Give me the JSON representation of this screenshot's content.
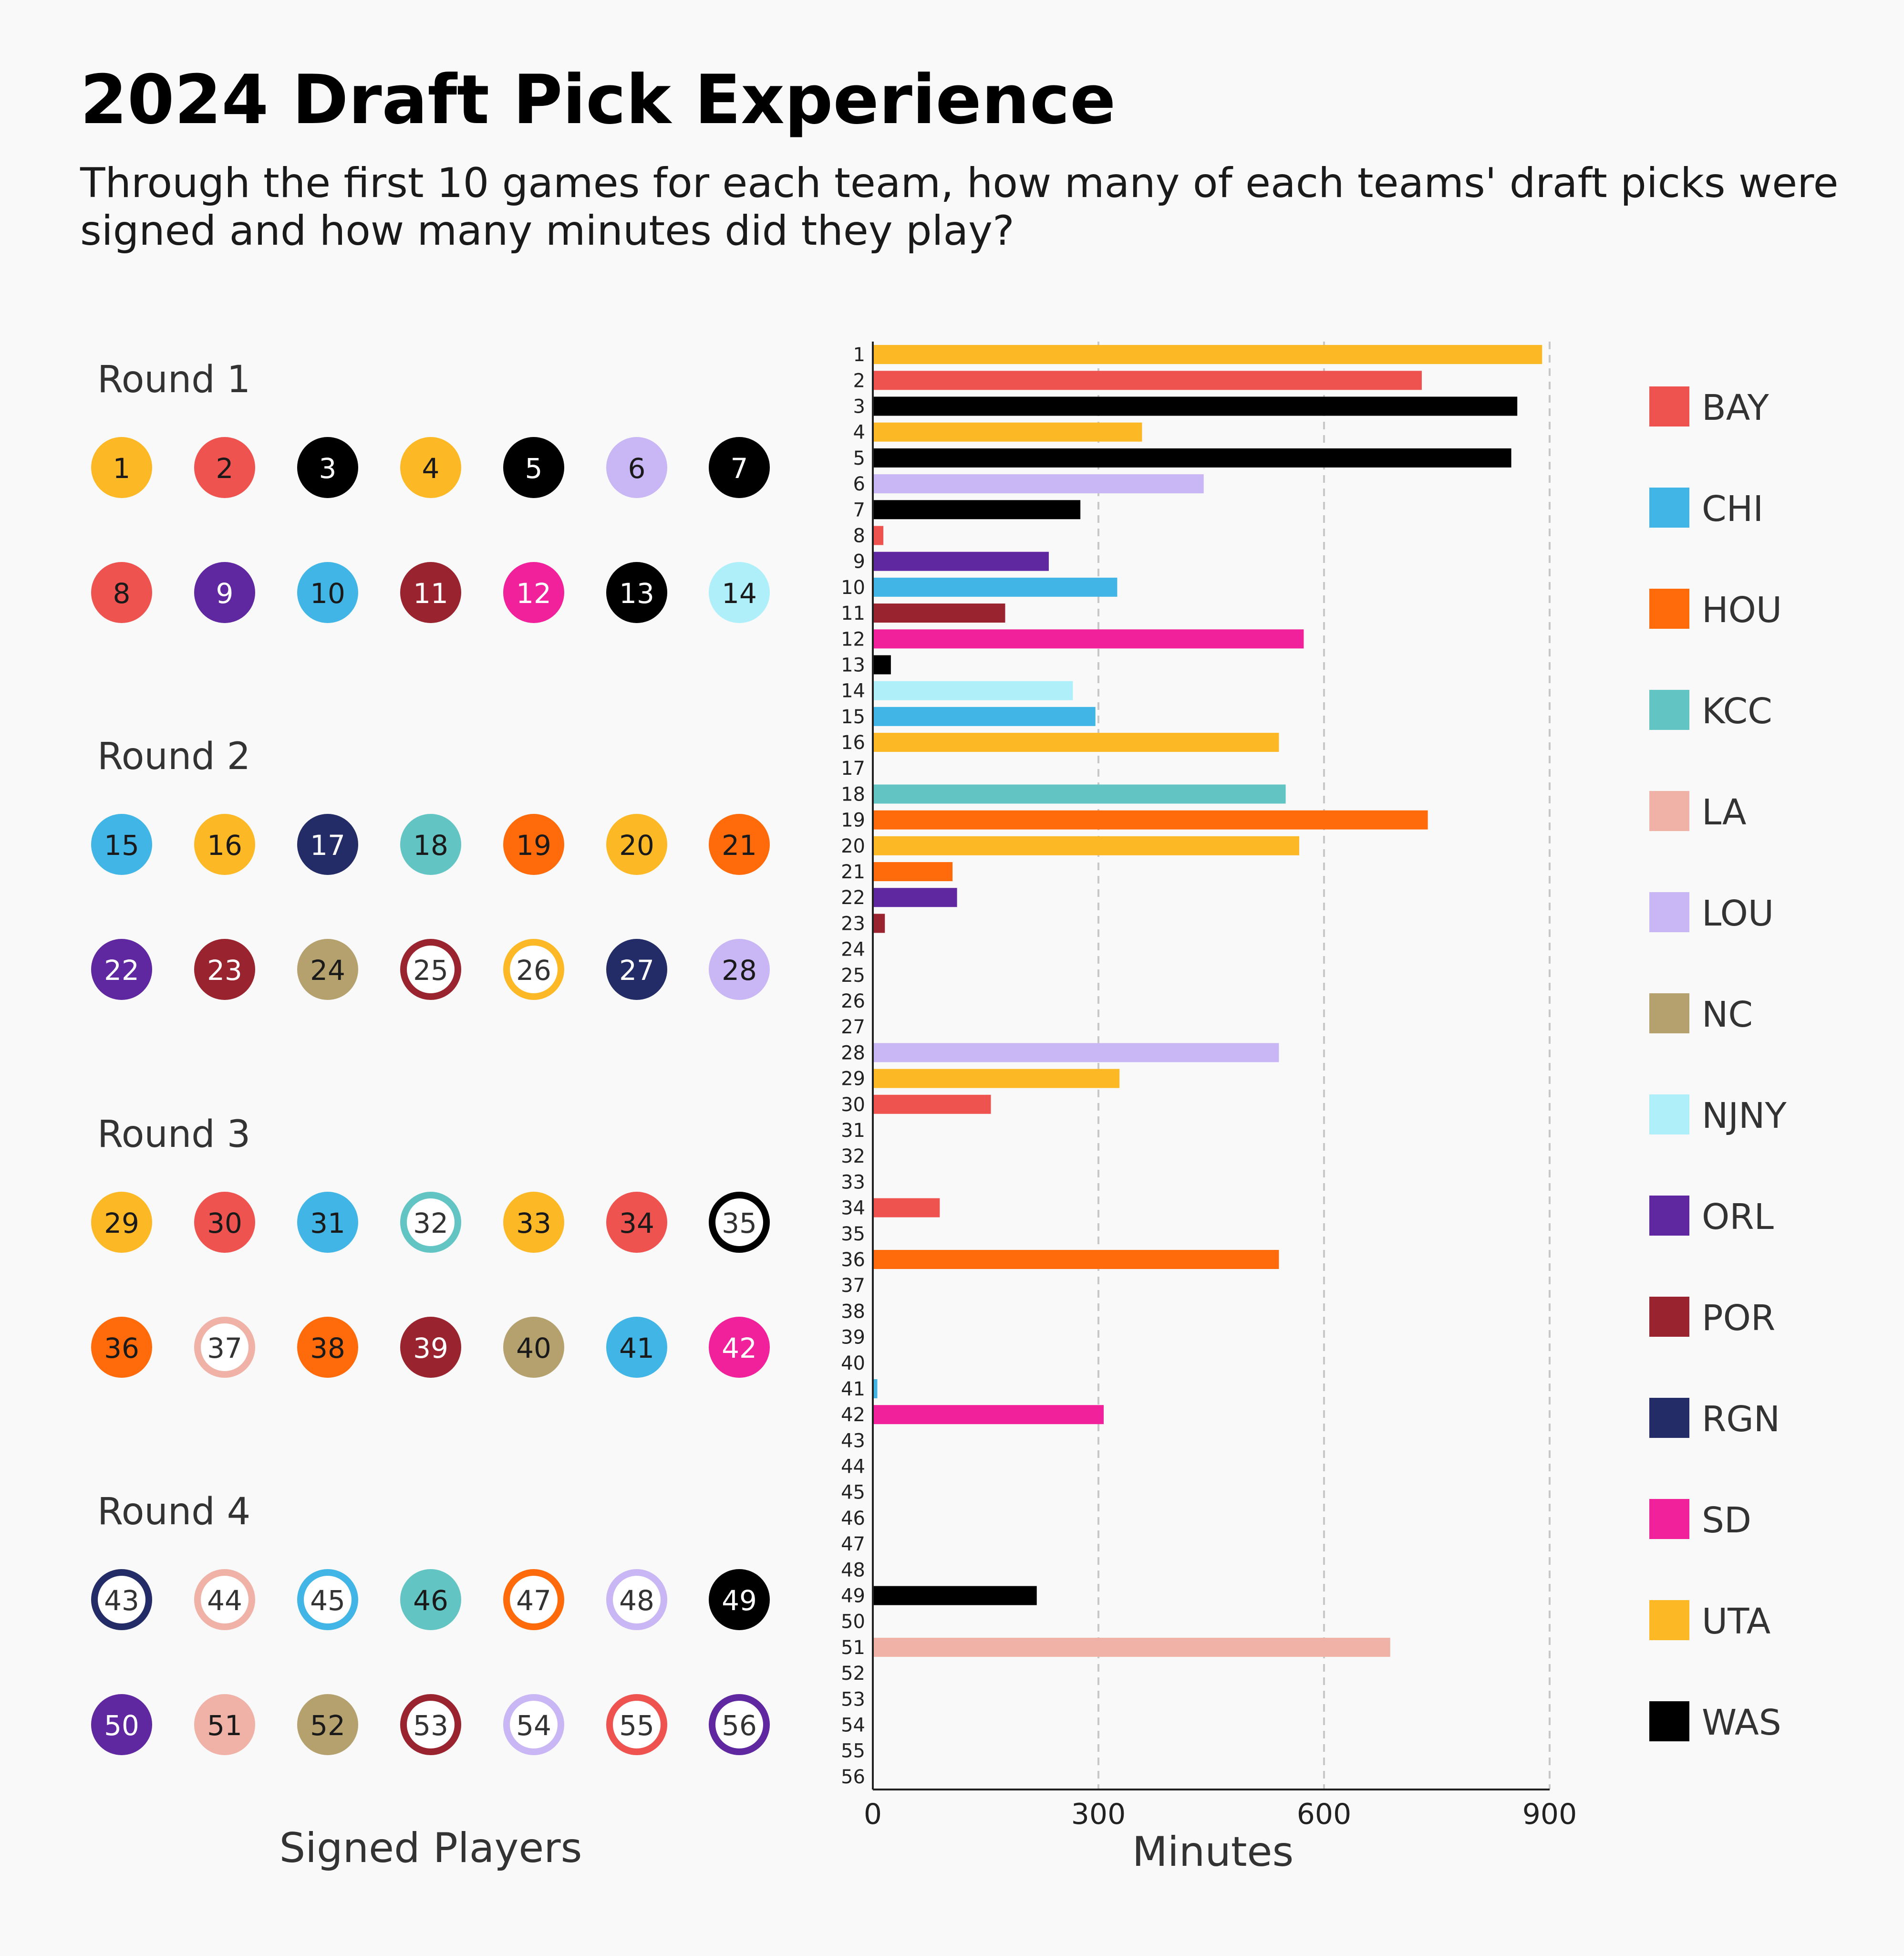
{
  "title": "2024 Draft Pick Experience",
  "subtitle": [
    "Through the first 10 games for each team, how many of each teams' draft picks were",
    "signed and how many minutes did they play?"
  ],
  "left_panel": {
    "xlabel": "Signed Players",
    "rounds": [
      {
        "label": "Round 1",
        "picks": [
          {
            "n": "1",
            "team": "UTA",
            "signed": true
          },
          {
            "n": "2",
            "team": "BAY",
            "signed": true
          },
          {
            "n": "3",
            "team": "WAS",
            "signed": true
          },
          {
            "n": "4",
            "team": "UTA",
            "signed": true
          },
          {
            "n": "5",
            "team": "WAS",
            "signed": true
          },
          {
            "n": "6",
            "team": "LOU",
            "signed": true
          },
          {
            "n": "7",
            "team": "WAS",
            "signed": true
          },
          {
            "n": "8",
            "team": "BAY",
            "signed": true
          },
          {
            "n": "9",
            "team": "ORL",
            "signed": true
          },
          {
            "n": "10",
            "team": "CHI",
            "signed": true
          },
          {
            "n": "11",
            "team": "POR",
            "signed": true
          },
          {
            "n": "12",
            "team": "SD",
            "signed": true
          },
          {
            "n": "13",
            "team": "WAS",
            "signed": true
          },
          {
            "n": "14",
            "team": "NJNY",
            "signed": true
          }
        ]
      },
      {
        "label": "Round 2",
        "picks": [
          {
            "n": "15",
            "team": "CHI",
            "signed": true
          },
          {
            "n": "16",
            "team": "UTA",
            "signed": true
          },
          {
            "n": "17",
            "team": "RGN",
            "signed": true
          },
          {
            "n": "18",
            "team": "KCC",
            "signed": true
          },
          {
            "n": "19",
            "team": "HOU",
            "signed": true
          },
          {
            "n": "20",
            "team": "UTA",
            "signed": true
          },
          {
            "n": "21",
            "team": "HOU",
            "signed": true
          },
          {
            "n": "22",
            "team": "ORL",
            "signed": true
          },
          {
            "n": "23",
            "team": "POR",
            "signed": true
          },
          {
            "n": "24",
            "team": "NC",
            "signed": true
          },
          {
            "n": "25",
            "team": "POR",
            "signed": false
          },
          {
            "n": "26",
            "team": "UTA",
            "signed": false
          },
          {
            "n": "27",
            "team": "RGN",
            "signed": true
          },
          {
            "n": "28",
            "team": "LOU",
            "signed": true
          }
        ]
      },
      {
        "label": "Round 3",
        "picks": [
          {
            "n": "29",
            "team": "UTA",
            "signed": true
          },
          {
            "n": "30",
            "team": "BAY",
            "signed": true
          },
          {
            "n": "31",
            "team": "CHI",
            "signed": true
          },
          {
            "n": "32",
            "team": "KCC",
            "signed": false
          },
          {
            "n": "33",
            "team": "UTA",
            "signed": true
          },
          {
            "n": "34",
            "team": "BAY",
            "signed": true
          },
          {
            "n": "35",
            "team": "WAS",
            "signed": false
          },
          {
            "n": "36",
            "team": "HOU",
            "signed": true
          },
          {
            "n": "37",
            "team": "LA",
            "signed": false
          },
          {
            "n": "38",
            "team": "HOU",
            "signed": true
          },
          {
            "n": "39",
            "team": "POR",
            "signed": true
          },
          {
            "n": "40",
            "team": "NC",
            "signed": true
          },
          {
            "n": "41",
            "team": "CHI",
            "signed": true
          },
          {
            "n": "42",
            "team": "SD",
            "signed": true
          }
        ]
      },
      {
        "label": "Round 4",
        "picks": [
          {
            "n": "43",
            "team": "RGN",
            "signed": false
          },
          {
            "n": "44",
            "team": "LA",
            "signed": false
          },
          {
            "n": "45",
            "team": "CHI",
            "signed": false
          },
          {
            "n": "46",
            "team": "KCC",
            "signed": true
          },
          {
            "n": "47",
            "team": "HOU",
            "signed": false
          },
          {
            "n": "48",
            "team": "LOU",
            "signed": false
          },
          {
            "n": "49",
            "team": "WAS",
            "signed": true
          },
          {
            "n": "50",
            "team": "ORL",
            "signed": true
          },
          {
            "n": "51",
            "team": "LA",
            "signed": true
          },
          {
            "n": "52",
            "team": "NC",
            "signed": true
          },
          {
            "n": "53",
            "team": "POR",
            "signed": false
          },
          {
            "n": "54",
            "team": "LOU",
            "signed": false
          },
          {
            "n": "55",
            "team": "BAY",
            "signed": false
          },
          {
            "n": "56",
            "team": "ORL",
            "signed": false
          }
        ]
      }
    ]
  },
  "legend": [
    {
      "team": "BAY",
      "color": "#EF5350"
    },
    {
      "team": "CHI",
      "color": "#41B6E6"
    },
    {
      "team": "HOU",
      "color": "#FF6B0B"
    },
    {
      "team": "KCC",
      "color": "#62C5C4"
    },
    {
      "team": "LA",
      "color": "#F0B2A6"
    },
    {
      "team": "LOU",
      "color": "#C9B6F5"
    },
    {
      "team": "NC",
      "color": "#B4A16E"
    },
    {
      "team": "NJNY",
      "color": "#AEEFFA"
    },
    {
      "team": "ORL",
      "color": "#5F27A0"
    },
    {
      "team": "POR",
      "color": "#99232E"
    },
    {
      "team": "RGN",
      "color": "#232C66"
    },
    {
      "team": "SD",
      "color": "#F1219C"
    },
    {
      "team": "UTA",
      "color": "#FDB825"
    },
    {
      "team": "WAS",
      "color": "#000000"
    }
  ],
  "chart_data": {
    "type": "bar",
    "orientation": "horizontal",
    "xlabel": "Minutes",
    "xlim": [
      0,
      900
    ],
    "xticks": [
      0,
      300,
      600,
      900
    ],
    "grid": "vertical dashed",
    "legend_position": "right",
    "categories": [
      "1",
      "2",
      "3",
      "4",
      "5",
      "6",
      "7",
      "8",
      "9",
      "10",
      "11",
      "12",
      "13",
      "14",
      "15",
      "16",
      "17",
      "18",
      "19",
      "20",
      "21",
      "22",
      "23",
      "24",
      "25",
      "26",
      "27",
      "28",
      "29",
      "30",
      "31",
      "32",
      "33",
      "34",
      "35",
      "36",
      "37",
      "38",
      "39",
      "40",
      "41",
      "42",
      "43",
      "44",
      "45",
      "46",
      "47",
      "48",
      "49",
      "50",
      "51",
      "52",
      "53",
      "54",
      "55",
      "56"
    ],
    "values": [
      890,
      730,
      857,
      358,
      849,
      440,
      276,
      14,
      234,
      325,
      176,
      573,
      24,
      266,
      296,
      540,
      0,
      549,
      738,
      567,
      106,
      112,
      16,
      0,
      0,
      0,
      0,
      540,
      328,
      157,
      0,
      0,
      0,
      89,
      0,
      540,
      0,
      0,
      0,
      0,
      6,
      307,
      0,
      0,
      0,
      0,
      0,
      0,
      218,
      0,
      688,
      0,
      0,
      0,
      0,
      0
    ],
    "teams": [
      "UTA",
      "BAY",
      "WAS",
      "UTA",
      "WAS",
      "LOU",
      "WAS",
      "BAY",
      "ORL",
      "CHI",
      "POR",
      "SD",
      "WAS",
      "NJNY",
      "CHI",
      "UTA",
      "RGN",
      "KCC",
      "HOU",
      "UTA",
      "HOU",
      "ORL",
      "POR",
      "NC",
      "POR",
      "UTA",
      "RGN",
      "LOU",
      "UTA",
      "BAY",
      "CHI",
      "KCC",
      "UTA",
      "BAY",
      "WAS",
      "HOU",
      "LA",
      "HOU",
      "POR",
      "NC",
      "CHI",
      "SD",
      "RGN",
      "LA",
      "CHI",
      "KCC",
      "HOU",
      "LOU",
      "WAS",
      "ORL",
      "LA",
      "NC",
      "POR",
      "LOU",
      "BAY",
      "ORL"
    ]
  }
}
